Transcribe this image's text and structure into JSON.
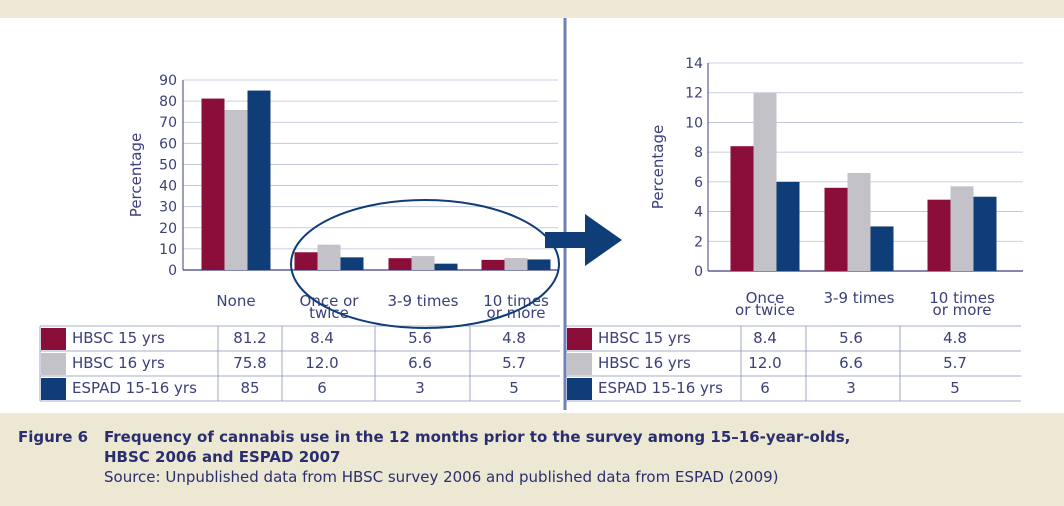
{
  "colors": {
    "hbsc15": "#8b0d3a",
    "hbsc16": "#c2c2c8",
    "espad": "#0e3d78",
    "axis": "#3b3f7a",
    "divider": "#6f82b3",
    "band": "#ece8d4"
  },
  "figure": {
    "label": "Figure 6",
    "title_line1": "Frequency of cannabis use in the 12 months prior to the survey among 15–16-year-olds,",
    "title_line2": "HBSC 2006 and ESPAD 2007",
    "source": "Source: Unpublished data from HBSC survey 2006 and published data from ESPAD (2009)"
  },
  "chart_data": [
    {
      "type": "bar",
      "ylabel": "Percentage",
      "ylim": [
        0,
        90
      ],
      "yticks": [
        "0",
        "10",
        "20",
        "30",
        "40",
        "50",
        "60",
        "70",
        "80",
        "90"
      ],
      "categories": [
        [
          "None"
        ],
        [
          "Once or",
          "twice"
        ],
        [
          "3-9 times"
        ],
        [
          "10 times",
          "or more"
        ]
      ],
      "series": [
        {
          "name": "HBSC 15 yrs",
          "values": [
            81.2,
            8.4,
            5.6,
            4.8
          ]
        },
        {
          "name": "HBSC 16 yrs",
          "values": [
            75.8,
            12.0,
            6.6,
            5.7
          ]
        },
        {
          "name": "ESPAD 15-16 yrs",
          "values": [
            85,
            6,
            3,
            5
          ]
        }
      ],
      "table": [
        {
          "series": "HBSC 15 yrs",
          "cells": [
            "81.2",
            "8.4",
            "5.6",
            "4.8"
          ]
        },
        {
          "series": "HBSC 16 yrs",
          "cells": [
            "75.8",
            "12.0",
            "6.6",
            "5.7"
          ]
        },
        {
          "series": "ESPAD 15-16 yrs",
          "cells": [
            "85",
            "6",
            "3",
            "5"
          ]
        }
      ],
      "grid": true,
      "annotation": "ellipse around the three non-zero frequency categories with an arrow to the zoomed chart"
    },
    {
      "type": "bar",
      "ylabel": "Percentage",
      "ylim": [
        0,
        14
      ],
      "yticks": [
        "0",
        "2",
        "4",
        "6",
        "8",
        "10",
        "12",
        "14"
      ],
      "categories": [
        [
          "Once",
          "or twice"
        ],
        [
          "3-9 times"
        ],
        [
          "10 times",
          "or more"
        ]
      ],
      "series": [
        {
          "name": "HBSC 15 yrs",
          "values": [
            8.4,
            5.6,
            4.8
          ]
        },
        {
          "name": "HBSC 16 yrs",
          "values": [
            12.0,
            6.6,
            5.7
          ]
        },
        {
          "name": "ESPAD 15-16 yrs",
          "values": [
            6,
            3,
            5
          ]
        }
      ],
      "table": [
        {
          "series": "HBSC 15 yrs",
          "cells": [
            "8.4",
            "5.6",
            "4.8"
          ]
        },
        {
          "series": "HBSC 16 yrs",
          "cells": [
            "12.0",
            "6.6",
            "5.7"
          ]
        },
        {
          "series": "ESPAD 15-16 yrs",
          "cells": [
            "6",
            "3",
            "5"
          ]
        }
      ],
      "grid": true
    }
  ]
}
